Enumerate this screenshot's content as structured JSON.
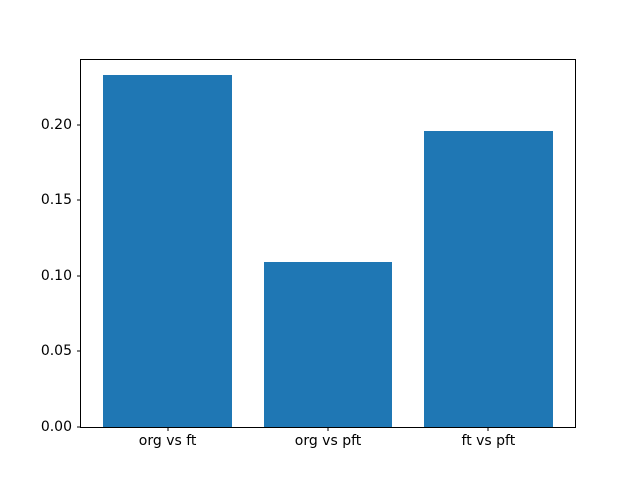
{
  "figure": {
    "background": "#ffffff",
    "title": ""
  },
  "chart_data": {
    "type": "bar",
    "categories": [
      "org vs ft",
      "org vs pft",
      "ft vs pft"
    ],
    "values": [
      0.233,
      0.109,
      0.196
    ],
    "title": "",
    "xlabel": "",
    "ylabel": "",
    "ylim": [
      0,
      0.2428
    ],
    "xlim": [
      -0.54,
      2.54
    ],
    "bar_width": 0.8,
    "bar_color": "#1f77b4",
    "spine_color": "#000000",
    "tick_color": "#000000",
    "grid": false,
    "legend": "none",
    "yticks": [
      {
        "label": "0.00",
        "value": 0.0
      },
      {
        "label": "0.05",
        "value": 0.05
      },
      {
        "label": "0.10",
        "value": 0.1
      },
      {
        "label": "0.15",
        "value": 0.15
      },
      {
        "label": "0.20",
        "value": 0.2
      }
    ]
  }
}
